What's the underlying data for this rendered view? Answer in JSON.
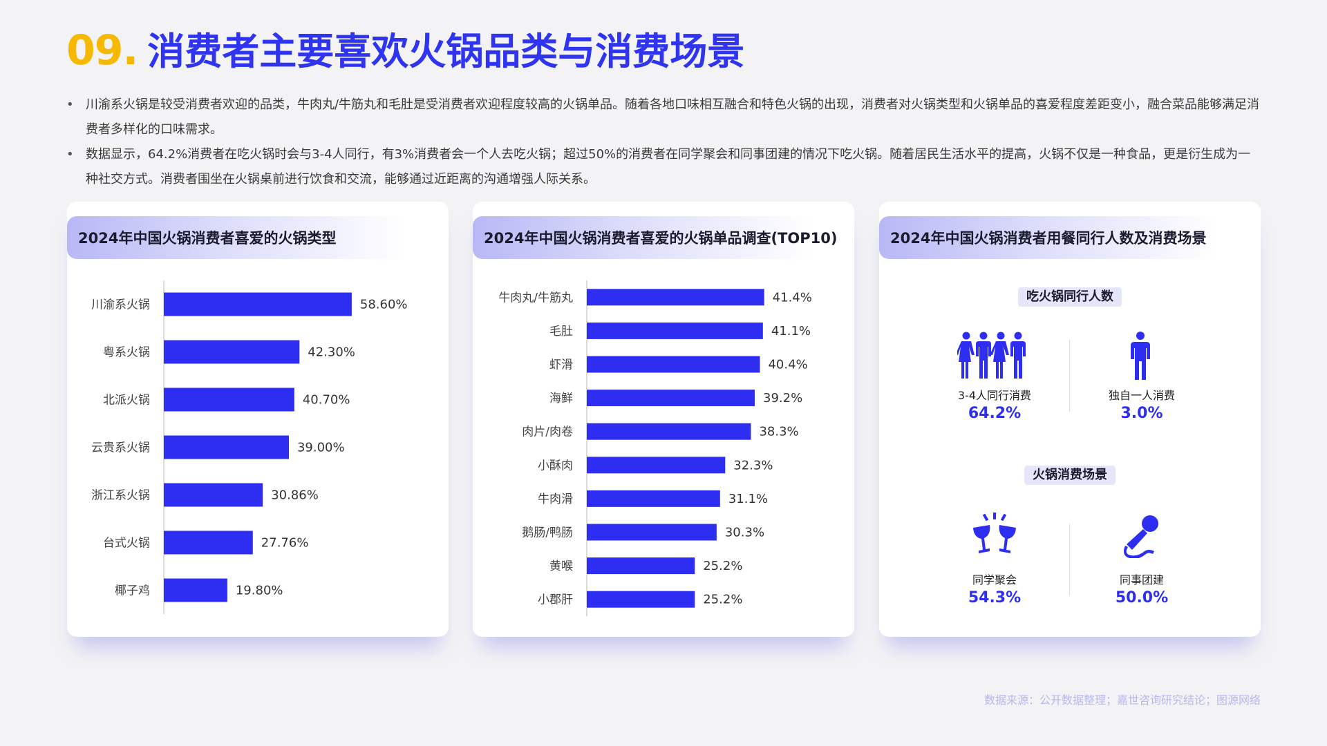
{
  "title": {
    "number": "09.",
    "text": "消费者主要喜欢火锅品类与消费场景"
  },
  "bullets": [
    "川渝系火锅是较受消费者欢迎的品类，牛肉丸/牛筋丸和毛肚是受消费者欢迎程度较高的火锅单品。随着各地口味相互融合和特色火锅的出现，消费者对火锅类型和火锅单品的喜爱程度差距变小，融合菜品能够满足消费者多样化的口味需求。",
    "数据显示，64.2%消费者在吃火锅时会与3-4人同行，有3%消费者会一个人去吃火锅；超过50%的消费者在同学聚会和同事团建的情况下吃火锅。随着居民生活水平的提高，火锅不仅是一种食品，更是衍生成为一种社交方式。消费者围坐在火锅桌前进行饮食和交流，能够通过近距离的沟通增强人际关系。"
  ],
  "chart_data": [
    {
      "type": "bar",
      "orientation": "horizontal",
      "title": "2024年中国火锅消费者喜爱的火锅类型",
      "categories": [
        "川渝系火锅",
        "粤系火锅",
        "北派火锅",
        "云贵系火锅",
        "浙江系火锅",
        "台式火锅",
        "椰子鸡"
      ],
      "values": [
        58.6,
        42.3,
        40.7,
        39.0,
        30.86,
        27.76,
        19.8
      ],
      "value_labels": [
        "58.60%",
        "42.30%",
        "40.70%",
        "39.00%",
        "30.86%",
        "27.76%",
        "19.80%"
      ],
      "unit": "%",
      "color": "#2e2ef2"
    },
    {
      "type": "bar",
      "orientation": "horizontal",
      "title": "2024年中国火锅消费者喜爱的火锅单品调查(TOP10)",
      "categories": [
        "牛肉丸/牛筋丸",
        "毛肚",
        "虾滑",
        "海鲜",
        "肉片/肉卷",
        "小酥肉",
        "牛肉滑",
        "鹅肠/鸭肠",
        "黄喉",
        "小郡肝"
      ],
      "values": [
        41.4,
        41.1,
        40.4,
        39.2,
        38.3,
        32.3,
        31.1,
        30.3,
        25.2,
        25.2
      ],
      "value_labels": [
        "41.4%",
        "41.1%",
        "40.4%",
        "39.2%",
        "38.3%",
        "32.3%",
        "31.1%",
        "30.3%",
        "25.2%",
        "25.2%"
      ],
      "unit": "%",
      "color": "#2e2ef2"
    }
  ],
  "card3": {
    "title": "2024年中国火锅消费者用餐同行人数及消费场景",
    "section1": {
      "label": "吃火锅同行人数",
      "items": [
        {
          "label": "3-4人同行消费",
          "value": "64.2%",
          "icon": "group-of-people-icon"
        },
        {
          "label": "独自一人消费",
          "value": "3.0%",
          "icon": "single-person-icon"
        }
      ]
    },
    "section2": {
      "label": "火锅消费场景",
      "items": [
        {
          "label": "同学聚会",
          "value": "54.3%",
          "icon": "cheers-glasses-icon"
        },
        {
          "label": "同事团建",
          "value": "50.0%",
          "icon": "microphone-icon"
        }
      ]
    }
  },
  "source": "数据来源：公开数据整理；嘉世咨询研究结论；图源网络",
  "colors": {
    "accent": "#2e2ef2",
    "number": "#f6b800",
    "source": "#b7b7f0"
  }
}
